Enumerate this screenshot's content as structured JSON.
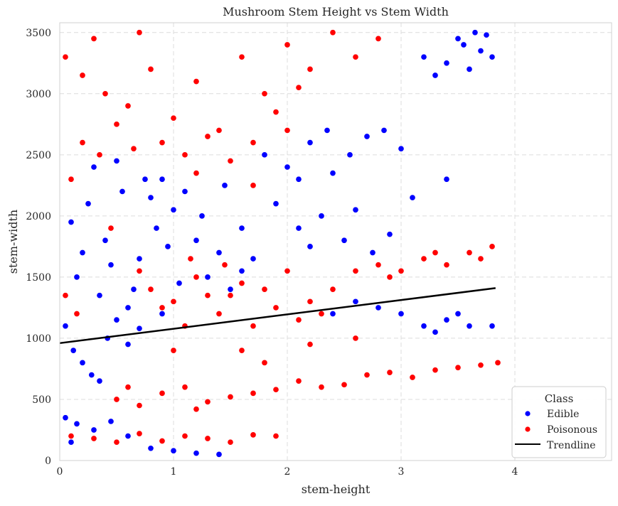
{
  "chart_data": {
    "type": "scatter",
    "title": "Mushroom Stem Height vs Stem Width",
    "xlabel": "stem-height",
    "ylabel": "stem-width",
    "xlim": [
      0,
      4.85
    ],
    "ylim": [
      0,
      3580
    ],
    "xticks": [
      0,
      1,
      2,
      3,
      4
    ],
    "yticks": [
      0,
      500,
      1000,
      1500,
      2000,
      2500,
      3000,
      3500
    ],
    "grid": true,
    "legend": {
      "title": "Class",
      "placement": "bottom-right",
      "entries": [
        {
          "label": "Edible",
          "marker": "circle",
          "color": "#0000ff"
        },
        {
          "label": "Poisonous",
          "marker": "circle",
          "color": "#ff0000"
        },
        {
          "label": "Trendline",
          "marker": "line",
          "color": "#000000"
        }
      ]
    },
    "series": [
      {
        "name": "Edible",
        "color": "#0000ff",
        "points": [
          [
            0.1,
            1950
          ],
          [
            0.25,
            2100
          ],
          [
            0.4,
            1800
          ],
          [
            0.55,
            2200
          ],
          [
            0.7,
            1650
          ],
          [
            0.85,
            1900
          ],
          [
            1.0,
            2050
          ],
          [
            0.15,
            1500
          ],
          [
            0.35,
            1350
          ],
          [
            0.6,
            1250
          ],
          [
            0.2,
            1700
          ],
          [
            0.45,
            1600
          ],
          [
            0.75,
            2300
          ],
          [
            0.95,
            1750
          ],
          [
            1.2,
            1800
          ],
          [
            1.4,
            1700
          ],
          [
            1.6,
            1550
          ],
          [
            0.3,
            2400
          ],
          [
            0.5,
            2450
          ],
          [
            0.8,
            2150
          ],
          [
            0.05,
            1100
          ],
          [
            0.12,
            900
          ],
          [
            0.2,
            800
          ],
          [
            0.28,
            700
          ],
          [
            0.35,
            650
          ],
          [
            0.42,
            1000
          ],
          [
            0.5,
            1150
          ],
          [
            0.6,
            950
          ],
          [
            0.7,
            1080
          ],
          [
            0.9,
            1200
          ],
          [
            0.05,
            350
          ],
          [
            0.15,
            300
          ],
          [
            0.3,
            250
          ],
          [
            0.45,
            320
          ],
          [
            0.6,
            200
          ],
          [
            0.8,
            100
          ],
          [
            1.0,
            80
          ],
          [
            1.2,
            60
          ],
          [
            1.4,
            50
          ],
          [
            0.1,
            150
          ],
          [
            1.8,
            2500
          ],
          [
            2.0,
            2400
          ],
          [
            2.2,
            2600
          ],
          [
            2.4,
            2350
          ],
          [
            2.55,
            2500
          ],
          [
            2.7,
            2650
          ],
          [
            2.85,
            2700
          ],
          [
            3.0,
            2550
          ],
          [
            2.1,
            2300
          ],
          [
            2.35,
            2700
          ],
          [
            1.9,
            2100
          ],
          [
            2.1,
            1900
          ],
          [
            2.3,
            2000
          ],
          [
            2.6,
            2050
          ],
          [
            2.9,
            1850
          ],
          [
            3.1,
            2150
          ],
          [
            3.4,
            2300
          ],
          [
            2.5,
            1800
          ],
          [
            2.75,
            1700
          ],
          [
            2.2,
            1750
          ],
          [
            2.6,
            1300
          ],
          [
            2.8,
            1250
          ],
          [
            3.0,
            1200
          ],
          [
            3.2,
            1100
          ],
          [
            3.4,
            1150
          ],
          [
            3.6,
            1100
          ],
          [
            3.8,
            1100
          ],
          [
            2.4,
            1200
          ],
          [
            3.3,
            1050
          ],
          [
            3.5,
            1200
          ],
          [
            3.2,
            3300
          ],
          [
            3.4,
            3250
          ],
          [
            3.55,
            3400
          ],
          [
            3.7,
            3350
          ],
          [
            3.8,
            3300
          ],
          [
            3.6,
            3200
          ],
          [
            3.5,
            3450
          ],
          [
            3.75,
            3480
          ],
          [
            3.3,
            3150
          ],
          [
            3.65,
            3500
          ],
          [
            1.3,
            1500
          ],
          [
            1.5,
            1400
          ],
          [
            1.7,
            1650
          ],
          [
            1.1,
            2200
          ],
          [
            1.25,
            2000
          ],
          [
            1.45,
            2250
          ],
          [
            1.6,
            1900
          ],
          [
            0.9,
            2300
          ],
          [
            1.05,
            1450
          ],
          [
            0.65,
            1400
          ]
        ]
      },
      {
        "name": "Poisonous",
        "color": "#ff0000",
        "points": [
          [
            0.05,
            3300
          ],
          [
            0.2,
            3150
          ],
          [
            0.4,
            3000
          ],
          [
            0.6,
            2900
          ],
          [
            0.8,
            3200
          ],
          [
            1.0,
            2800
          ],
          [
            1.2,
            3100
          ],
          [
            0.3,
            3450
          ],
          [
            0.7,
            3500
          ],
          [
            1.4,
            2700
          ],
          [
            1.6,
            3300
          ],
          [
            1.8,
            3000
          ],
          [
            2.0,
            3400
          ],
          [
            2.2,
            3200
          ],
          [
            2.4,
            3500
          ],
          [
            2.6,
            3300
          ],
          [
            2.8,
            3450
          ],
          [
            1.7,
            2600
          ],
          [
            1.9,
            2850
          ],
          [
            2.1,
            3050
          ],
          [
            0.9,
            2600
          ],
          [
            1.1,
            2500
          ],
          [
            1.3,
            2650
          ],
          [
            0.5,
            2750
          ],
          [
            0.65,
            2550
          ],
          [
            1.5,
            2450
          ],
          [
            1.2,
            2350
          ],
          [
            1.7,
            2250
          ],
          [
            2.0,
            2700
          ],
          [
            0.35,
            2500
          ],
          [
            1.6,
            1450
          ],
          [
            1.8,
            1400
          ],
          [
            2.0,
            1550
          ],
          [
            2.2,
            1300
          ],
          [
            1.9,
            1250
          ],
          [
            2.1,
            1150
          ],
          [
            1.7,
            1100
          ],
          [
            2.4,
            1400
          ],
          [
            1.5,
            1350
          ],
          [
            2.3,
            1200
          ],
          [
            0.8,
            1400
          ],
          [
            1.0,
            1300
          ],
          [
            1.2,
            1500
          ],
          [
            0.9,
            1250
          ],
          [
            1.1,
            1100
          ],
          [
            1.3,
            1350
          ],
          [
            1.4,
            1200
          ],
          [
            0.7,
            1550
          ],
          [
            1.15,
            1650
          ],
          [
            1.45,
            1600
          ],
          [
            2.6,
            1550
          ],
          [
            2.8,
            1600
          ],
          [
            3.0,
            1550
          ],
          [
            3.2,
            1650
          ],
          [
            3.4,
            1600
          ],
          [
            3.6,
            1700
          ],
          [
            3.8,
            1750
          ],
          [
            2.9,
            1500
          ],
          [
            3.3,
            1700
          ],
          [
            3.7,
            1650
          ],
          [
            2.1,
            650
          ],
          [
            2.3,
            600
          ],
          [
            2.5,
            620
          ],
          [
            2.7,
            700
          ],
          [
            2.9,
            720
          ],
          [
            3.1,
            680
          ],
          [
            3.3,
            740
          ],
          [
            3.5,
            760
          ],
          [
            3.7,
            780
          ],
          [
            3.85,
            800
          ],
          [
            0.5,
            500
          ],
          [
            0.7,
            450
          ],
          [
            0.9,
            550
          ],
          [
            1.1,
            600
          ],
          [
            1.3,
            480
          ],
          [
            1.5,
            520
          ],
          [
            1.7,
            550
          ],
          [
            1.9,
            580
          ],
          [
            0.6,
            600
          ],
          [
            1.2,
            420
          ],
          [
            0.1,
            200
          ],
          [
            0.3,
            180
          ],
          [
            0.5,
            150
          ],
          [
            0.7,
            220
          ],
          [
            0.9,
            160
          ],
          [
            1.1,
            200
          ],
          [
            1.3,
            180
          ],
          [
            1.5,
            150
          ],
          [
            1.7,
            210
          ],
          [
            1.9,
            200
          ],
          [
            0.05,
            1350
          ],
          [
            0.15,
            1200
          ],
          [
            0.1,
            2300
          ],
          [
            0.2,
            2600
          ],
          [
            0.45,
            1900
          ],
          [
            1.0,
            900
          ],
          [
            1.6,
            900
          ],
          [
            1.8,
            800
          ],
          [
            2.2,
            950
          ],
          [
            2.6,
            1000
          ]
        ]
      }
    ],
    "trendline": {
      "name": "Trendline",
      "color": "#000000",
      "x": [
        0,
        3.83
      ],
      "y": [
        960,
        1410
      ]
    }
  }
}
